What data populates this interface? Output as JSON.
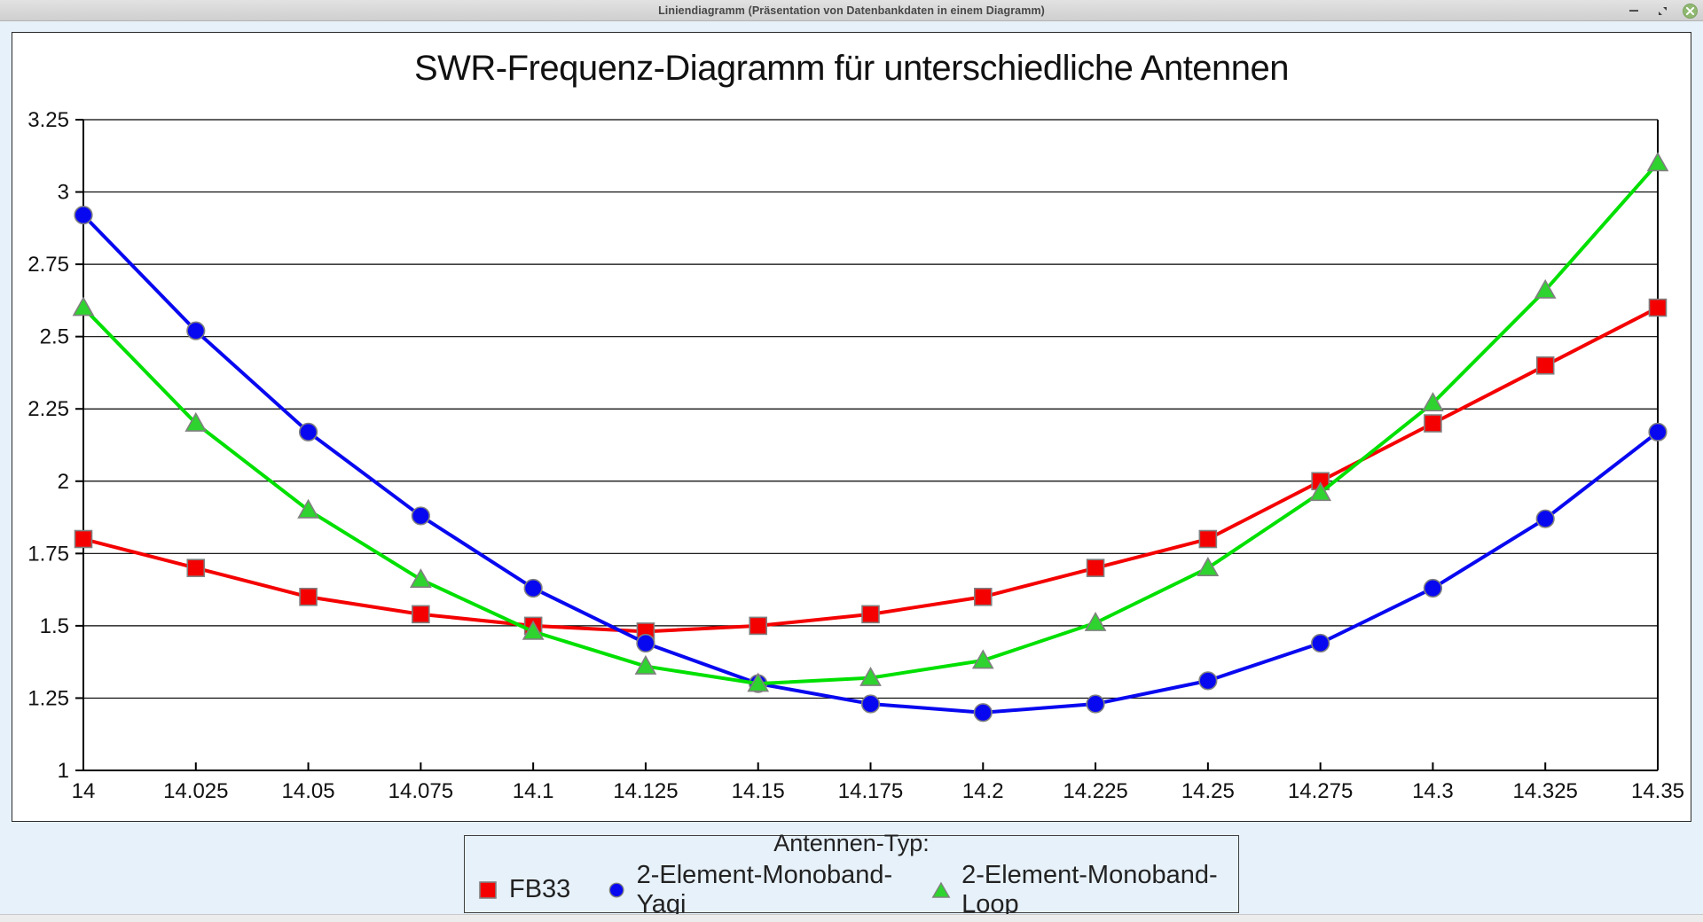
{
  "window": {
    "title": "Liniendiagramm (Präsentation von Datenbankdaten in einem Diagramm)",
    "controls": {
      "minimize": "–",
      "maximize": "❖",
      "close": "✕"
    }
  },
  "chart_data": {
    "type": "line",
    "title": "SWR-Frequenz-Diagramm für unterschiedliche Antennen",
    "xlabel": "",
    "ylabel": "",
    "x": [
      14.0,
      14.025,
      14.05,
      14.075,
      14.1,
      14.125,
      14.15,
      14.175,
      14.2,
      14.225,
      14.25,
      14.275,
      14.3,
      14.325,
      14.35
    ],
    "x_tick_labels": [
      "14",
      "14.025",
      "14.05",
      "14.075",
      "14.1",
      "14.125",
      "14.15",
      "14.175",
      "14.2",
      "14.225",
      "14.25",
      "14.275",
      "14.3",
      "14.325",
      "14.35"
    ],
    "xlim": [
      14.0,
      14.35
    ],
    "y_ticks": [
      1,
      1.25,
      1.5,
      1.75,
      2,
      2.25,
      2.5,
      2.75,
      3,
      3.25
    ],
    "y_tick_labels": [
      "1",
      "1.25",
      "1.5",
      "1.75",
      "2",
      "2.25",
      "2.5",
      "2.75",
      "3",
      "3.25"
    ],
    "ylim": [
      1,
      3.25
    ],
    "grid": "horizontal",
    "legend_position": "bottom",
    "legend_title": "Antennen-Typ:",
    "series": [
      {
        "name": "FB33",
        "marker": "square",
        "line_color": "#f40000",
        "marker_color": "#f40000",
        "values": [
          1.8,
          1.7,
          1.6,
          1.54,
          1.5,
          1.48,
          1.5,
          1.54,
          1.6,
          1.7,
          1.8,
          2.0,
          2.2,
          2.4,
          2.6
        ]
      },
      {
        "name": "2-Element-Monoband-Yagi",
        "marker": "circle",
        "line_color": "#0808f0",
        "marker_color": "#0808f0",
        "values": [
          2.92,
          2.52,
          2.17,
          1.88,
          1.63,
          1.44,
          1.3,
          1.23,
          1.2,
          1.23,
          1.31,
          1.44,
          1.63,
          1.87,
          2.17
        ]
      },
      {
        "name": "2-Element-Monoband-Loop",
        "marker": "triangle",
        "line_color": "#00e000",
        "marker_color": "#2fd32f",
        "values": [
          2.6,
          2.2,
          1.9,
          1.66,
          1.48,
          1.36,
          1.3,
          1.32,
          1.38,
          1.51,
          1.7,
          1.96,
          2.27,
          2.66,
          3.1
        ]
      }
    ],
    "marker_stroke": "#808080"
  }
}
